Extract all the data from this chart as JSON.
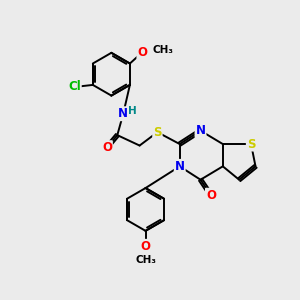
{
  "bg_color": "#ebebeb",
  "bond_color": "#000000",
  "colors": {
    "N": "#0000ee",
    "O": "#ff0000",
    "S": "#cccc00",
    "Cl": "#00bb00",
    "H": "#008888",
    "C": "#000000"
  },
  "font_size_atom": 8.5,
  "font_size_label": 7.5,
  "lw": 1.4
}
